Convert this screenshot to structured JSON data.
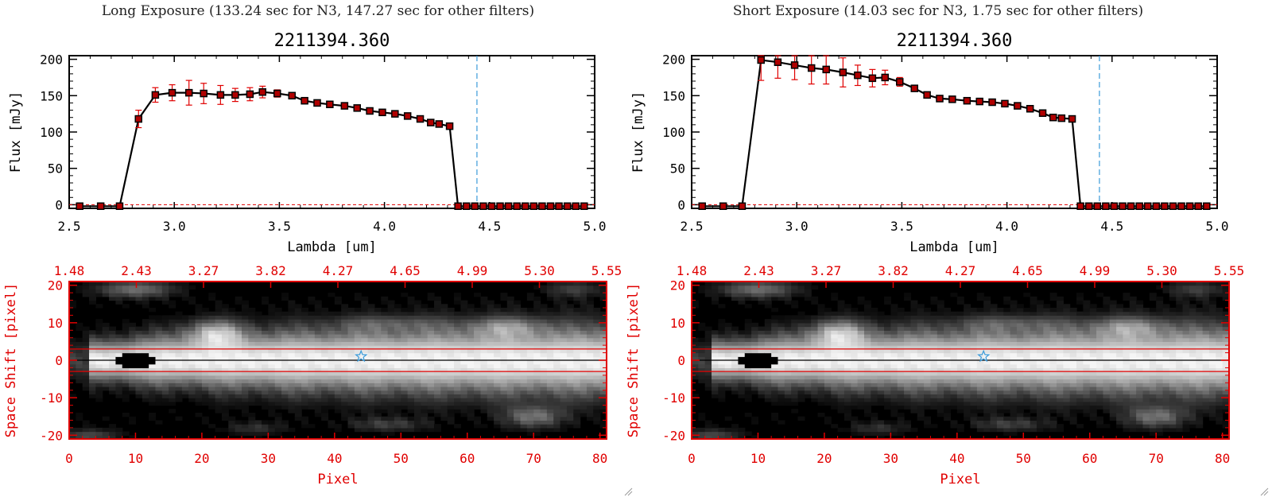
{
  "panels": [
    {
      "id": "long",
      "title": "Long Exposure (133.24 sec for N3, 147.27 sec for other filters)"
    },
    {
      "id": "short",
      "title": "Short Exposure (14.03 sec for N3, 1.75 sec for other filters)"
    }
  ],
  "colors": {
    "line": "#000000",
    "marker_fill": "#b00000",
    "error_bar": "#e00000",
    "marker_line": "#e00000",
    "vline": "#3a9ad9",
    "image_axes": "#e00000",
    "star": "#3a9ad9"
  },
  "chart_data": [
    {
      "type": "line",
      "panel": "long",
      "title": "2211394.360",
      "xlabel": "Lambda [um]",
      "ylabel": "Flux [mJy]",
      "xlim": [
        2.5,
        5.0
      ],
      "ylim": [
        -5,
        205
      ],
      "xticks": [
        "2.5",
        "3.0",
        "3.5",
        "4.0",
        "4.5",
        "5.0"
      ],
      "yticks": [
        "0",
        "50",
        "100",
        "150",
        "200"
      ],
      "vline_x": 4.44,
      "series": [
        {
          "name": "Flux",
          "x": [
            2.55,
            2.65,
            2.74,
            2.83,
            2.91,
            2.99,
            3.07,
            3.14,
            3.22,
            3.29,
            3.36,
            3.42,
            3.49,
            3.56,
            3.62,
            3.68,
            3.74,
            3.81,
            3.87,
            3.93,
            3.99,
            4.05,
            4.11,
            4.17,
            4.22,
            4.26,
            4.31,
            4.35,
            4.39,
            4.43,
            4.47,
            4.51,
            4.55,
            4.59,
            4.63,
            4.67,
            4.71,
            4.75,
            4.79,
            4.83,
            4.87,
            4.91,
            4.95
          ],
          "y": [
            -2,
            -2,
            -2,
            118,
            151,
            154,
            154,
            153,
            151,
            151,
            152,
            155,
            153,
            150,
            143,
            140,
            138,
            136,
            133,
            129,
            127,
            125,
            122,
            118,
            113,
            111,
            108,
            -2,
            -2,
            -2,
            -2,
            -2,
            -2,
            -2,
            -2,
            -2,
            -2,
            -2,
            -2,
            -2,
            -2,
            -2,
            -2
          ],
          "err": [
            0,
            0,
            0,
            12,
            10,
            11,
            17,
            14,
            13,
            9,
            9,
            8,
            5,
            3,
            3,
            3,
            3,
            3,
            3,
            3,
            3,
            3,
            3,
            3,
            3,
            3,
            3,
            0,
            0,
            0,
            0,
            0,
            0,
            0,
            0,
            0,
            0,
            0,
            0,
            0,
            0,
            0,
            0
          ]
        }
      ]
    },
    {
      "type": "line",
      "panel": "short",
      "title": "2211394.360",
      "xlabel": "Lambda [um]",
      "ylabel": "Flux [mJy]",
      "xlim": [
        2.5,
        5.0
      ],
      "ylim": [
        -5,
        205
      ],
      "xticks": [
        "2.5",
        "3.0",
        "3.5",
        "4.0",
        "4.5",
        "5.0"
      ],
      "yticks": [
        "0",
        "50",
        "100",
        "150",
        "200"
      ],
      "vline_x": 4.44,
      "series": [
        {
          "name": "Flux",
          "x": [
            2.55,
            2.65,
            2.74,
            2.83,
            2.91,
            2.99,
            3.07,
            3.14,
            3.22,
            3.29,
            3.36,
            3.42,
            3.49,
            3.56,
            3.62,
            3.68,
            3.74,
            3.81,
            3.87,
            3.93,
            3.99,
            4.05,
            4.11,
            4.17,
            4.22,
            4.26,
            4.31,
            4.35,
            4.39,
            4.43,
            4.47,
            4.51,
            4.55,
            4.59,
            4.63,
            4.67,
            4.71,
            4.75,
            4.79,
            4.83,
            4.87,
            4.91,
            4.95
          ],
          "y": [
            -2,
            -2,
            -2,
            199,
            196,
            192,
            188,
            186,
            182,
            178,
            174,
            175,
            169,
            160,
            151,
            146,
            145,
            143,
            142,
            141,
            139,
            136,
            132,
            126,
            120,
            119,
            118,
            -2,
            -2,
            -2,
            -2,
            -2,
            -2,
            -2,
            -2,
            -2,
            -2,
            -2,
            -2,
            -2,
            -2,
            -2,
            -2
          ],
          "err": [
            0,
            0,
            0,
            28,
            22,
            20,
            22,
            20,
            20,
            14,
            12,
            10,
            6,
            4,
            4,
            3,
            3,
            3,
            3,
            3,
            3,
            3,
            3,
            3,
            3,
            3,
            3,
            0,
            0,
            0,
            0,
            0,
            0,
            0,
            0,
            0,
            0,
            0,
            0,
            0,
            0,
            0,
            0
          ]
        }
      ]
    },
    {
      "type": "heatmap",
      "panel": "long",
      "xlabel": "Pixel",
      "ylabel": "Space Shift [pixel]",
      "xlim": [
        0,
        81
      ],
      "ylim": [
        -21,
        21
      ],
      "xticks": [
        "0",
        "10",
        "20",
        "30",
        "40",
        "50",
        "60",
        "70",
        "80"
      ],
      "yticks": [
        "-20",
        "-10",
        "0",
        "10",
        "20"
      ],
      "top_ticks": [
        "1.48",
        "2.43",
        "3.27",
        "3.82",
        "4.27",
        "4.65",
        "4.99",
        "5.30",
        "5.55"
      ],
      "band_y": [
        -3,
        0,
        3
      ],
      "star": {
        "x": 44,
        "y": 1
      }
    },
    {
      "type": "heatmap",
      "panel": "short",
      "xlabel": "Pixel",
      "ylabel": "Space Shift [pixel]",
      "xlim": [
        0,
        81
      ],
      "ylim": [
        -21,
        21
      ],
      "xticks": [
        "0",
        "10",
        "20",
        "30",
        "40",
        "50",
        "60",
        "70",
        "80"
      ],
      "yticks": [
        "-20",
        "-10",
        "0",
        "10",
        "20"
      ],
      "top_ticks": [
        "1.48",
        "2.43",
        "3.27",
        "3.82",
        "4.27",
        "4.65",
        "4.99",
        "5.30",
        "5.55"
      ],
      "band_y": [
        -3,
        0,
        3
      ],
      "star": {
        "x": 44,
        "y": 1
      }
    }
  ]
}
